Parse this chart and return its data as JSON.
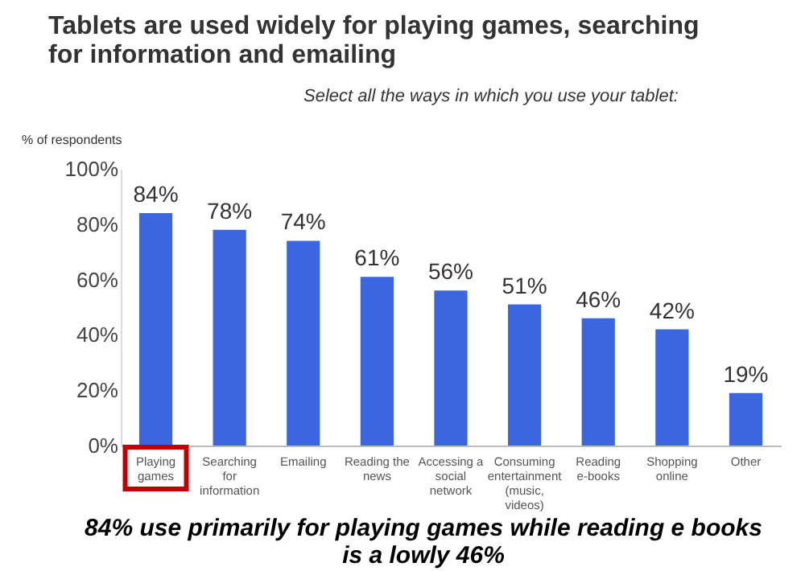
{
  "chart_data": {
    "type": "bar",
    "title": "Tablets are used widely for playing games, searching for information and emailing",
    "subtitle": "Select all the ways in which you use your tablet:",
    "ylabel": "% of respondents",
    "categories": [
      "Playing games",
      "Searching for information",
      "Emailing",
      "Reading the news",
      "Accessing a social network",
      "Consuming entertainment (music, videos)",
      "Reading e-books",
      "Shopping online",
      "Other"
    ],
    "values": [
      84,
      78,
      74,
      61,
      56,
      51,
      46,
      42,
      19
    ],
    "value_labels": [
      "84%",
      "78%",
      "74%",
      "61%",
      "56%",
      "51%",
      "46%",
      "42%",
      "19%"
    ],
    "color": "#3b66e0",
    "ylim": [
      0,
      100
    ],
    "yticks": [
      {
        "value": 0,
        "label": "0%"
      },
      {
        "value": 20,
        "label": "20%"
      },
      {
        "value": 40,
        "label": "40%"
      },
      {
        "value": 60,
        "label": "60%"
      },
      {
        "value": 80,
        "label": "80%"
      },
      {
        "value": 100,
        "label": "100%"
      }
    ],
    "grid": false,
    "annotations": [
      "84% use primarily for playing games while reading e books is a lowly 46%"
    ]
  }
}
